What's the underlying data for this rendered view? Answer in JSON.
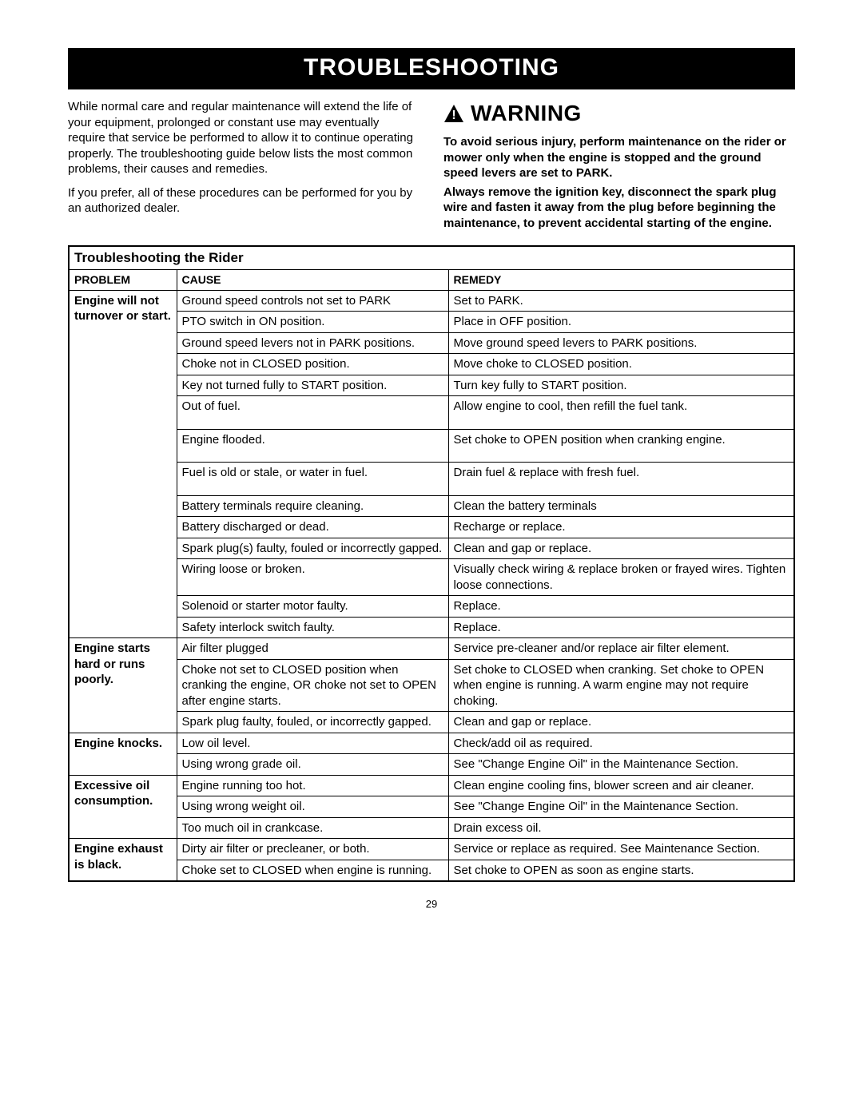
{
  "title": "TROUBLESHOOTING",
  "intro": {
    "p1": "While normal care and regular maintenance will extend the life of your equipment, prolonged or constant use may eventually require that service be performed to allow it to continue operating properly.  The troubleshooting guide below lists the most common problems, their causes and remedies.",
    "p2": "If you prefer, all of these procedures can be performed for you by an authorized dealer."
  },
  "warning": {
    "label": "WARNING",
    "p1": "To avoid serious injury, perform maintenance on the rider or mower only when the engine is stopped and the ground speed levers are set to PARK.",
    "p2": "Always remove the ignition key, disconnect the spark plug wire and fasten it away from the plug before beginning the maintenance, to prevent accidental starting of the engine."
  },
  "table": {
    "section": "Troubleshooting the Rider",
    "headers": {
      "problem": "PROBLEM",
      "cause": "CAUSE",
      "remedy": "REMEDY"
    },
    "groups": [
      {
        "problem": "Engine will not turnover or start.",
        "rows": [
          {
            "cause": "Ground speed controls not set to PARK",
            "remedy": "Set to PARK."
          },
          {
            "cause": "PTO switch in ON position.",
            "remedy": "Place in OFF position."
          },
          {
            "cause": "Ground speed levers not in PARK positions.",
            "remedy": "Move ground speed levers to PARK positions."
          },
          {
            "cause": "Choke not in CLOSED position.",
            "remedy": "Move choke to CLOSED position."
          },
          {
            "cause": "Key not turned fully to START position.",
            "remedy": "Turn key fully to START position."
          },
          {
            "cause": "Out of fuel.",
            "remedy": "Allow engine to cool, then refill the fuel tank."
          },
          {
            "cause": "Engine flooded.",
            "remedy": "Set choke to OPEN position when cranking engine."
          },
          {
            "cause": "Fuel is old or stale, or water in fuel.",
            "remedy": "Drain fuel & replace with fresh fuel."
          },
          {
            "cause": "Battery terminals require cleaning.",
            "remedy": "Clean the battery terminals"
          },
          {
            "cause": "Battery discharged or dead.",
            "remedy": "Recharge or replace."
          },
          {
            "cause": "Spark plug(s) faulty, fouled or incorrectly gapped.",
            "remedy": "Clean and gap or replace."
          },
          {
            "cause": "Wiring loose or broken.",
            "remedy": "Visually check wiring & replace broken or frayed wires. Tighten loose connections."
          },
          {
            "cause": "Solenoid or starter motor faulty.",
            "remedy": "Replace."
          },
          {
            "cause": "Safety interlock switch faulty.",
            "remedy": "Replace."
          }
        ]
      },
      {
        "problem": "Engine starts hard or runs poorly.",
        "rows": [
          {
            "cause": "Air filter plugged",
            "remedy": "Service pre-cleaner and/or replace air filter element."
          },
          {
            "cause": "Choke not set to CLOSED position when cranking the engine, OR choke not set to OPEN after engine starts.",
            "remedy": "Set choke to CLOSED when cranking.  Set choke to OPEN when engine is running.  A warm engine may not require choking."
          },
          {
            "cause": "Spark plug faulty, fouled, or incorrectly gapped.",
            "remedy": "Clean and gap or replace."
          }
        ]
      },
      {
        "problem": "Engine knocks.",
        "rows": [
          {
            "cause": "Low oil level.",
            "remedy": "Check/add oil as required."
          },
          {
            "cause": "Using wrong grade oil.",
            "remedy": "See \"Change Engine Oil\" in the Maintenance Section."
          }
        ]
      },
      {
        "problem": "Excessive oil consumption.",
        "rows": [
          {
            "cause": "Engine running too hot.",
            "remedy": "Clean engine cooling fins, blower screen and air cleaner."
          },
          {
            "cause": "Using wrong weight oil.",
            "remedy": "See \"Change Engine Oil\" in the Maintenance Section."
          },
          {
            "cause": "Too much oil in crankcase.",
            "remedy": "Drain excess oil."
          }
        ]
      },
      {
        "problem": "Engine exhaust is black.",
        "rows": [
          {
            "cause": "Dirty air filter or precleaner, or both.",
            "remedy": "Service or replace as required.  See Maintenance Section."
          },
          {
            "cause": "Choke set to CLOSED when engine is running.",
            "remedy": "Set choke to OPEN as soon as engine starts."
          }
        ]
      }
    ]
  },
  "pageNumber": "29"
}
